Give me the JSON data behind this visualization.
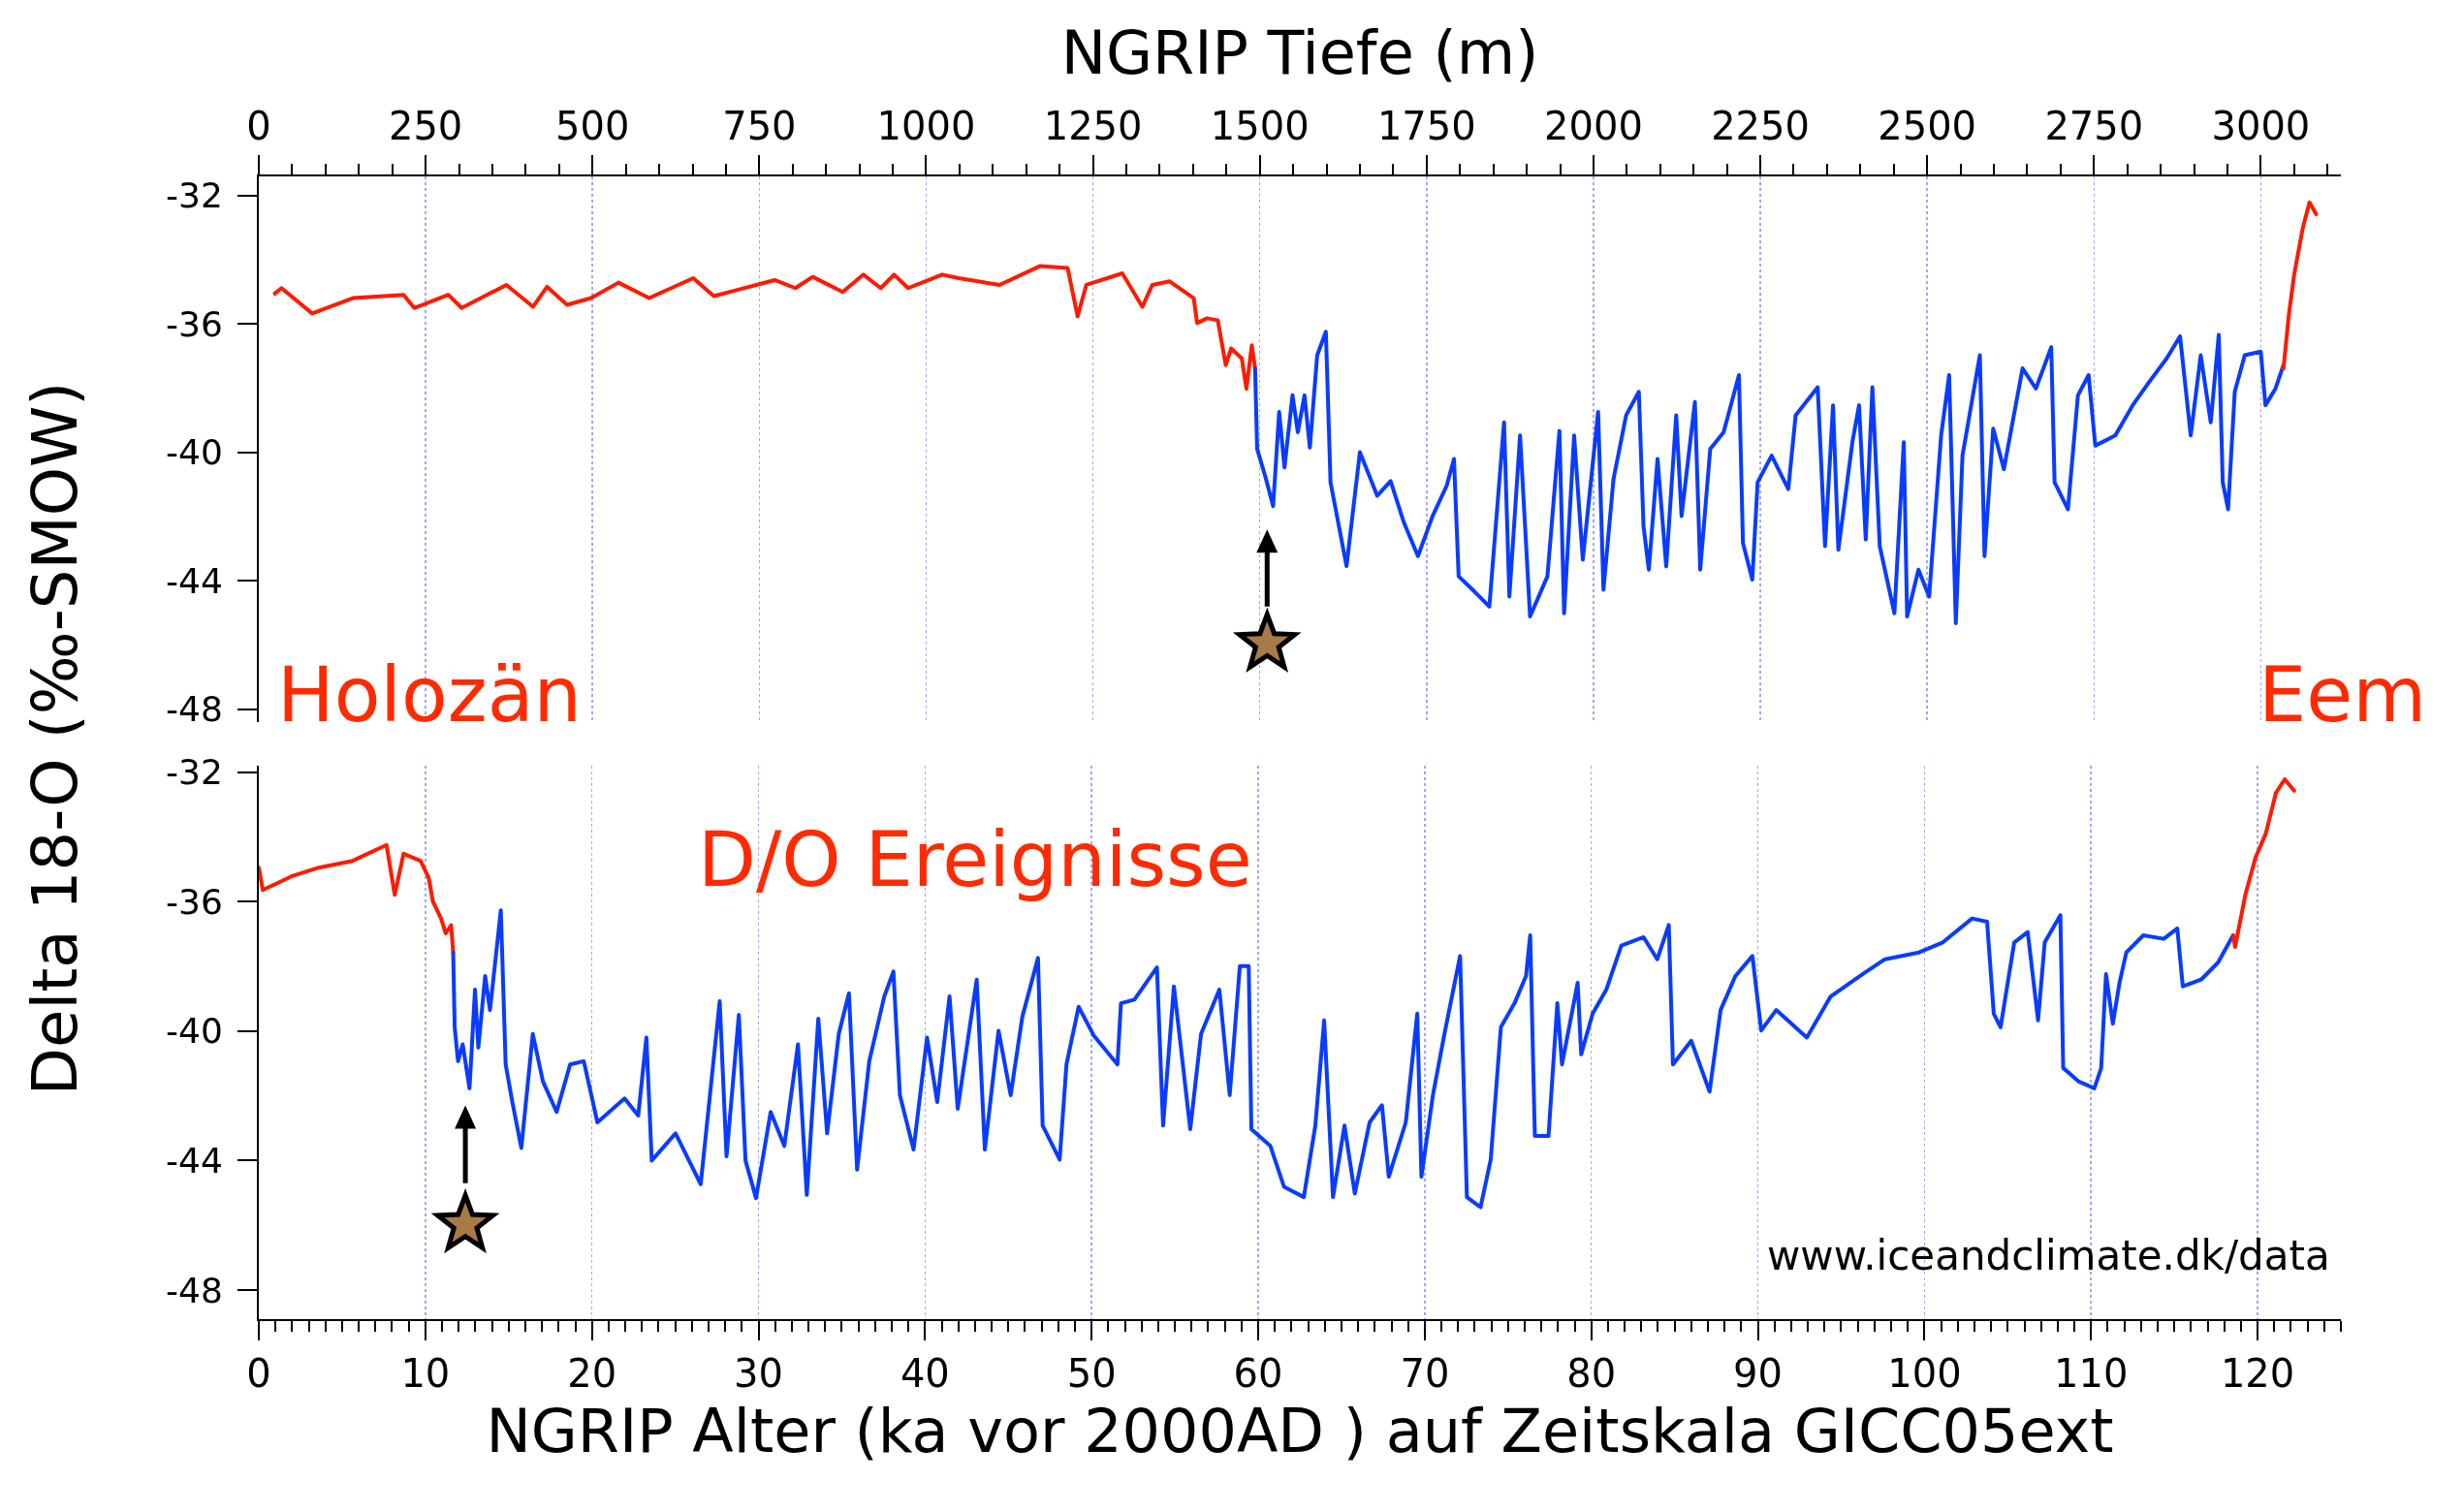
{
  "chart_data": [
    {
      "type": "line",
      "xlabel": "NGRIP Tiefe (m)",
      "ylabel": "Delta 18-O (‰-SMOW)",
      "xlim": [
        0,
        3120
      ],
      "ylim": [
        -48.4,
        -31.4
      ],
      "yticks": [
        -48,
        -44,
        -40,
        -36,
        -32
      ],
      "grid": "x",
      "xticks": [
        0,
        {
          "value": 50,
          "label": null
        },
        {
          "value": 100,
          "label": null
        },
        {
          "value": 150,
          "label": null
        },
        {
          "value": 200,
          "label": null
        },
        250,
        {
          "value": 300,
          "label": null
        },
        {
          "value": 350,
          "label": null
        },
        {
          "value": 400,
          "label": null
        },
        {
          "value": 450,
          "label": null
        },
        500,
        {
          "value": 550,
          "label": null
        },
        {
          "value": 600,
          "label": null
        },
        {
          "value": 650,
          "label": null
        },
        {
          "value": 700,
          "label": null
        },
        750,
        {
          "value": 800,
          "label": null
        },
        {
          "value": 850,
          "label": null
        },
        {
          "value": 900,
          "label": null
        },
        {
          "value": 950,
          "label": null
        },
        1000,
        {
          "value": 1050,
          "label": null
        },
        {
          "value": 1100,
          "label": null
        },
        {
          "value": 1150,
          "label": null
        },
        {
          "value": 1200,
          "label": null
        },
        1250,
        {
          "value": 1300,
          "label": null
        },
        {
          "value": 1350,
          "label": null
        },
        {
          "value": 1400,
          "label": null
        },
        {
          "value": 1450,
          "label": null
        },
        1500,
        {
          "value": 1550,
          "label": null
        },
        {
          "value": 1600,
          "label": null
        },
        {
          "value": 1650,
          "label": null
        },
        {
          "value": 1700,
          "label": null
        },
        1750,
        {
          "value": 1800,
          "label": null
        },
        {
          "value": 1850,
          "label": null
        },
        {
          "value": 1900,
          "label": null
        },
        {
          "value": 1950,
          "label": null
        },
        2000,
        {
          "value": 2050,
          "label": null
        },
        {
          "value": 2100,
          "label": null
        },
        {
          "value": 2150,
          "label": null
        },
        {
          "value": 2200,
          "label": null
        },
        2250,
        {
          "value": 2300,
          "label": null
        },
        {
          "value": 2350,
          "label": null
        },
        {
          "value": 2400,
          "label": null
        },
        {
          "value": 2450,
          "label": null
        },
        2500,
        {
          "value": 2550,
          "label": null
        },
        {
          "value": 2600,
          "label": null
        },
        {
          "value": 2650,
          "label": null
        },
        {
          "value": 2700,
          "label": null
        },
        2750,
        {
          "value": 2800,
          "label": null
        },
        {
          "value": 2850,
          "label": null
        },
        {
          "value": 2900,
          "label": null
        },
        {
          "value": 2950,
          "label": null
        },
        3000,
        {
          "value": 3050,
          "label": null
        },
        {
          "value": 3100,
          "label": null
        }
      ],
      "annotations": [
        "Holozän",
        "Eem"
      ],
      "series": [
        {
          "color": "#ff1a00",
          "x": [
            24,
            34,
            80,
            141,
            217,
            233,
            284,
            304,
            371,
            411,
            432,
            462,
            498,
            539,
            585,
            651,
            682,
            773,
            804,
            830,
            875,
            906,
            932,
            952,
            973,
            1024,
            1049,
            1110,
            1171,
            1212,
            1227,
            1240,
            1294,
            1324,
            1339,
            1365,
            1401,
            1406,
            1421,
            1437,
            1449,
            1457,
            1473,
            1480,
            1488,
            1493
          ],
          "values": [
            -35.05,
            -34.88,
            -35.67,
            -35.19,
            -35.09,
            -35.5,
            -35.09,
            -35.5,
            -34.78,
            -35.46,
            -34.84,
            -35.4,
            -35.19,
            -34.71,
            -35.19,
            -34.57,
            -35.13,
            -34.63,
            -34.88,
            -34.53,
            -35.0,
            -34.46,
            -34.88,
            -34.46,
            -34.88,
            -34.46,
            -34.57,
            -34.78,
            -34.19,
            -34.25,
            -35.76,
            -34.78,
            -34.42,
            -35.46,
            -34.78,
            -34.67,
            -35.19,
            -35.97,
            -35.82,
            -35.88,
            -37.28,
            -36.76,
            -37.07,
            -38.01,
            -36.66,
            -37.39
          ]
        },
        {
          "color": "#0a3cff",
          "x": [
            1493,
            1496,
            1508,
            1520,
            1529,
            1537,
            1549,
            1557,
            1567,
            1575,
            1586,
            1599,
            1606,
            1630,
            1650,
            1676,
            1696,
            1716,
            1737,
            1759,
            1780,
            1791,
            1798,
            1819,
            1844,
            1866,
            1874,
            1890,
            1905,
            1931,
            1949,
            1956,
            1971,
            1984,
            2007,
            2015,
            2030,
            2049,
            2068,
            2075,
            2083,
            2096,
            2109,
            2124,
            2132,
            2152,
            2160,
            2175,
            2195,
            2218,
            2224,
            2238,
            2246,
            2267,
            2292,
            2303,
            2336,
            2347,
            2359,
            2367,
            2388,
            2398,
            2408,
            2418,
            2429,
            2451,
            2465,
            2470,
            2487,
            2503,
            2521,
            2533,
            2543,
            2553,
            2579,
            2586,
            2599,
            2615,
            2643,
            2663,
            2686,
            2691,
            2711,
            2726,
            2742,
            2752,
            2782,
            2808,
            2833,
            2859,
            2879,
            2895,
            2910,
            2925,
            2937,
            2943,
            2951,
            2961,
            2976,
            3000,
            3007,
            3022,
            3034
          ],
          "values": [
            -37.39,
            -39.89,
            -40.73,
            -41.67,
            -38.74,
            -40.47,
            -38.22,
            -39.37,
            -38.22,
            -39.85,
            -36.97,
            -36.24,
            -40.93,
            -43.54,
            -39.99,
            -41.35,
            -40.89,
            -42.19,
            -43.23,
            -41.98,
            -41.04,
            -40.2,
            -43.86,
            -44.28,
            -44.8,
            -39.06,
            -44.49,
            -39.47,
            -45.11,
            -43.86,
            -39.33,
            -45.01,
            -39.47,
            -43.34,
            -38.74,
            -44.28,
            -40.83,
            -38.84,
            -38.11,
            -42.3,
            -43.65,
            -40.2,
            -43.55,
            -38.84,
            -41.98,
            -38.43,
            -43.65,
            -39.89,
            -39.37,
            -37.59,
            -42.82,
            -43.96,
            -40.93,
            -40.1,
            -41.14,
            -38.84,
            -37.97,
            -42.92,
            -38.53,
            -43.03,
            -39.68,
            -38.53,
            -42.71,
            -37.97,
            -42.92,
            -45.01,
            -39.68,
            -45.11,
            -43.65,
            -44.49,
            -39.47,
            -37.59,
            -45.32,
            -40.1,
            -36.97,
            -43.23,
            -39.26,
            -40.52,
            -37.38,
            -38.01,
            -36.72,
            -40.93,
            -41.77,
            -38.22,
            -37.59,
            -39.79,
            -39.47,
            -38.53,
            -37.8,
            -37.07,
            -36.38,
            -39.47,
            -36.97,
            -39.06,
            -36.34,
            -40.93,
            -41.77,
            -38.11,
            -36.97,
            -36.86,
            -38.53,
            -38.01,
            -37.28
          ]
        },
        {
          "color": "#ff1a00",
          "x": [
            3034,
            3042,
            3050,
            3063,
            3073,
            3083
          ],
          "values": [
            -37.39,
            -35.72,
            -34.46,
            -33.0,
            -32.21,
            -32.58
          ]
        }
      ]
    },
    {
      "type": "line",
      "xlabel": "NGRIP Alter (ka vor 2000AD ) auf Zeitskala GICC05ext",
      "xlim": [
        0,
        125
      ],
      "ylim": [
        -48.9,
        -31.8
      ],
      "yticks": [
        -48,
        -44,
        -40,
        -36,
        -32
      ],
      "grid": "x",
      "xticks": [
        0,
        {
          "value": 1,
          "label": null
        },
        {
          "value": 2,
          "label": null
        },
        {
          "value": 3,
          "label": null
        },
        {
          "value": 4,
          "label": null
        },
        {
          "value": 5,
          "label": null
        },
        {
          "value": 6,
          "label": null
        },
        {
          "value": 7,
          "label": null
        },
        {
          "value": 8,
          "label": null
        },
        {
          "value": 9,
          "label": null
        },
        10,
        {
          "value": 11,
          "label": null
        },
        {
          "value": 12,
          "label": null
        },
        {
          "value": 13,
          "label": null
        },
        {
          "value": 14,
          "label": null
        },
        {
          "value": 15,
          "label": null
        },
        {
          "value": 16,
          "label": null
        },
        {
          "value": 17,
          "label": null
        },
        {
          "value": 18,
          "label": null
        },
        {
          "value": 19,
          "label": null
        },
        20,
        {
          "value": 21,
          "label": null
        },
        {
          "value": 22,
          "label": null
        },
        {
          "value": 23,
          "label": null
        },
        {
          "value": 24,
          "label": null
        },
        {
          "value": 25,
          "label": null
        },
        {
          "value": 26,
          "label": null
        },
        {
          "value": 27,
          "label": null
        },
        {
          "value": 28,
          "label": null
        },
        {
          "value": 29,
          "label": null
        },
        30,
        {
          "value": 31,
          "label": null
        },
        {
          "value": 32,
          "label": null
        },
        {
          "value": 33,
          "label": null
        },
        {
          "value": 34,
          "label": null
        },
        {
          "value": 35,
          "label": null
        },
        {
          "value": 36,
          "label": null
        },
        {
          "value": 37,
          "label": null
        },
        {
          "value": 38,
          "label": null
        },
        {
          "value": 39,
          "label": null
        },
        40,
        {
          "value": 41,
          "label": null
        },
        {
          "value": 42,
          "label": null
        },
        {
          "value": 43,
          "label": null
        },
        {
          "value": 44,
          "label": null
        },
        {
          "value": 45,
          "label": null
        },
        {
          "value": 46,
          "label": null
        },
        {
          "value": 47,
          "label": null
        },
        {
          "value": 48,
          "label": null
        },
        {
          "value": 49,
          "label": null
        },
        50,
        {
          "value": 51,
          "label": null
        },
        {
          "value": 52,
          "label": null
        },
        {
          "value": 53,
          "label": null
        },
        {
          "value": 54,
          "label": null
        },
        {
          "value": 55,
          "label": null
        },
        {
          "value": 56,
          "label": null
        },
        {
          "value": 57,
          "label": null
        },
        {
          "value": 58,
          "label": null
        },
        {
          "value": 59,
          "label": null
        },
        60,
        {
          "value": 61,
          "label": null
        },
        {
          "value": 62,
          "label": null
        },
        {
          "value": 63,
          "label": null
        },
        {
          "value": 64,
          "label": null
        },
        {
          "value": 65,
          "label": null
        },
        {
          "value": 66,
          "label": null
        },
        {
          "value": 67,
          "label": null
        },
        {
          "value": 68,
          "label": null
        },
        {
          "value": 69,
          "label": null
        },
        70,
        {
          "value": 71,
          "label": null
        },
        {
          "value": 72,
          "label": null
        },
        {
          "value": 73,
          "label": null
        },
        {
          "value": 74,
          "label": null
        },
        {
          "value": 75,
          "label": null
        },
        {
          "value": 76,
          "label": null
        },
        {
          "value": 77,
          "label": null
        },
        {
          "value": 78,
          "label": null
        },
        {
          "value": 79,
          "label": null
        },
        80,
        {
          "value": 81,
          "label": null
        },
        {
          "value": 82,
          "label": null
        },
        {
          "value": 83,
          "label": null
        },
        {
          "value": 84,
          "label": null
        },
        {
          "value": 85,
          "label": null
        },
        {
          "value": 86,
          "label": null
        },
        {
          "value": 87,
          "label": null
        },
        {
          "value": 88,
          "label": null
        },
        {
          "value": 89,
          "label": null
        },
        90,
        {
          "value": 91,
          "label": null
        },
        {
          "value": 92,
          "label": null
        },
        {
          "value": 93,
          "label": null
        },
        {
          "value": 94,
          "label": null
        },
        {
          "value": 95,
          "label": null
        },
        {
          "value": 96,
          "label": null
        },
        {
          "value": 97,
          "label": null
        },
        {
          "value": 98,
          "label": null
        },
        {
          "value": 99,
          "label": null
        },
        100,
        {
          "value": 101,
          "label": null
        },
        {
          "value": 102,
          "label": null
        },
        {
          "value": 103,
          "label": null
        },
        {
          "value": 104,
          "label": null
        },
        {
          "value": 105,
          "label": null
        },
        {
          "value": 106,
          "label": null
        },
        {
          "value": 107,
          "label": null
        },
        {
          "value": 108,
          "label": null
        },
        {
          "value": 109,
          "label": null
        },
        110,
        {
          "value": 111,
          "label": null
        },
        {
          "value": 112,
          "label": null
        },
        {
          "value": 113,
          "label": null
        },
        {
          "value": 114,
          "label": null
        },
        {
          "value": 115,
          "label": null
        },
        {
          "value": 116,
          "label": null
        },
        {
          "value": 117,
          "label": null
        },
        {
          "value": 118,
          "label": null
        },
        {
          "value": 119,
          "label": null
        },
        120,
        {
          "value": 121,
          "label": null
        },
        {
          "value": 122,
          "label": null
        },
        {
          "value": 123,
          "label": null
        },
        {
          "value": 124,
          "label": null
        },
        {
          "value": 125,
          "label": null
        }
      ],
      "annotations": [
        "D/O Ereignisse",
        "www.iceandclimate.dk/data"
      ],
      "series": [
        {
          "color": "#ff1a00",
          "x": [
            0,
            0.24,
            1.96,
            3.6,
            5.63,
            7.67,
            8.16,
            8.69,
            9.71,
            10.2,
            10.45,
            10.94,
            11.22,
            11.55,
            11.67
          ],
          "values": [
            -34.95,
            -35.64,
            -35.22,
            -34.95,
            -34.74,
            -34.25,
            -35.79,
            -34.52,
            -34.74,
            -35.26,
            -35.99,
            -36.52,
            -36.98,
            -36.73,
            -37.57
          ]
        },
        {
          "color": "#0a3cff",
          "x": [
            11.67,
            11.76,
            11.96,
            12.24,
            12.65,
            12.98,
            13.18,
            13.59,
            13.88,
            14.53,
            14.82,
            15.22,
            15.76,
            16.45,
            17.06,
            17.88,
            18.69,
            19.51,
            20.33,
            21.96,
            22.78,
            23.27,
            23.59,
            25.02,
            26.53,
            27.67,
            28.08,
            28.82,
            29.22,
            29.85,
            30.73,
            31.55,
            32.37,
            32.9,
            33.59,
            34.12,
            34.82,
            35.43,
            35.92,
            36.65,
            37.55,
            38.1,
            38.49,
            39.31,
            40.12,
            40.73,
            41.47,
            41.96,
            43.1,
            43.59,
            44.41,
            45.14,
            45.84,
            46.78,
            47.06,
            48.08,
            48.49,
            49.22,
            50.12,
            51.55,
            51.76,
            52.57,
            53.92,
            54.29,
            54.94,
            55.92,
            56.57,
            57.67,
            58.29,
            58.9,
            59.43,
            59.59,
            60.73,
            61.55,
            62.74,
            63.43,
            63.96,
            64.49,
            65.18,
            65.8,
            66.69,
            67.43,
            67.84,
            68.86,
            69.55,
            69.8,
            70.49,
            71.18,
            72.12,
            72.53,
            73.35,
            73.96,
            74.57,
            75.39,
            76.08,
            76.33,
            76.61,
            77.43,
            77.96,
            78.24,
            79.18,
            79.39,
            80.08,
            80.9,
            81.8,
            83.14,
            83.96,
            84.65,
            84.9,
            86.0,
            87.1,
            87.76,
            88.65,
            89.67,
            90.2,
            91.1,
            92.94,
            94.37,
            96.41,
            97.63,
            99.67,
            101.1,
            102.86,
            103.76,
            104.16,
            104.57,
            105.39,
            106.2,
            106.82,
            107.22,
            108.16,
            108.33,
            109.27,
            110.2,
            110.61,
            110.9,
            111.31,
            111.71,
            112.12,
            113.14,
            114.37,
            115.18,
            115.51,
            116.61,
            117.63,
            118.53
          ],
          "values": [
            -37.57,
            -39.88,
            -40.93,
            -40.41,
            -41.77,
            -38.72,
            -40.51,
            -38.3,
            -39.35,
            -36.27,
            -41.03,
            -42.19,
            -43.61,
            -40.09,
            -41.56,
            -42.5,
            -41.03,
            -40.93,
            -42.82,
            -42.08,
            -42.61,
            -40.2,
            -44.0,
            -43.16,
            -44.73,
            -39.08,
            -43.87,
            -39.5,
            -44.0,
            -45.16,
            -42.5,
            -43.55,
            -40.41,
            -45.06,
            -39.62,
            -43.16,
            -40.09,
            -38.83,
            -44.28,
            -40.93,
            -38.93,
            -38.16,
            -41.98,
            -43.66,
            -40.2,
            -42.19,
            -38.93,
            -42.4,
            -38.41,
            -43.66,
            -39.99,
            -41.98,
            -39.56,
            -37.74,
            -42.92,
            -43.97,
            -41.03,
            -39.25,
            -40.13,
            -41.03,
            -39.14,
            -39.03,
            -38.03,
            -42.92,
            -38.62,
            -43.03,
            -40.09,
            -38.72,
            -41.98,
            -37.99,
            -37.99,
            -43.03,
            -43.55,
            -44.81,
            -45.13,
            -42.92,
            -39.67,
            -45.13,
            -42.92,
            -45.02,
            -42.82,
            -42.29,
            -44.5,
            -42.82,
            -39.46,
            -44.5,
            -41.98,
            -40.09,
            -37.68,
            -45.13,
            -45.44,
            -43.97,
            -39.88,
            -39.14,
            -38.3,
            -37.04,
            -43.24,
            -43.24,
            -39.14,
            -41.03,
            -38.51,
            -40.72,
            -39.46,
            -38.72,
            -37.36,
            -37.1,
            -37.78,
            -36.72,
            -41.03,
            -40.3,
            -41.87,
            -39.35,
            -38.3,
            -37.68,
            -39.98,
            -39.35,
            -40.2,
            -38.93,
            -38.2,
            -37.78,
            -37.57,
            -37.26,
            -36.52,
            -36.62,
            -39.46,
            -39.88,
            -37.26,
            -36.94,
            -39.67,
            -37.26,
            -36.42,
            -41.14,
            -41.56,
            -41.77,
            -41.14,
            -38.24,
            -39.77,
            -38.51,
            -37.57,
            -37.04,
            -37.15,
            -36.83,
            -38.62,
            -38.41,
            -37.88,
            -37.04
          ]
        },
        {
          "color": "#ff1a00",
          "x": [
            118.53,
            118.65,
            119.27,
            119.88,
            120.49,
            121.1,
            121.63,
            122.2
          ],
          "values": [
            -37.04,
            -37.4,
            -35.78,
            -34.63,
            -33.9,
            -32.64,
            -32.22,
            -32.57
          ]
        }
      ]
    }
  ]
}
